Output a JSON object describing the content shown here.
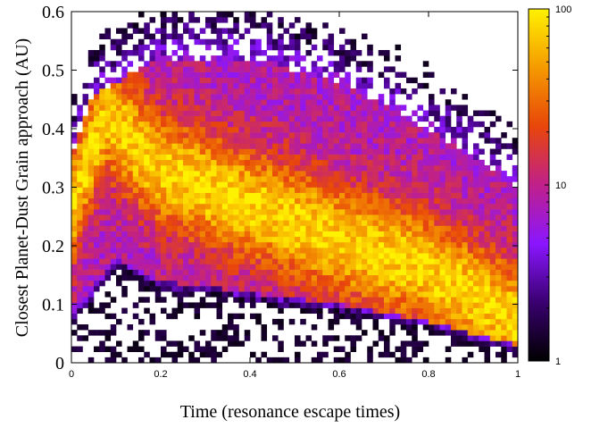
{
  "chart_data": {
    "type": "heatmap",
    "title": "",
    "xlabel": "Time (resonance escape times)",
    "ylabel": "Closest Planet-Dust Grain approach (AU)",
    "xlim": [
      0,
      1
    ],
    "ylim": [
      0,
      0.6
    ],
    "x_ticks": [
      "0",
      "0.2",
      "0.4",
      "0.6",
      "0.8",
      "1"
    ],
    "x_tick_values": [
      0,
      0.2,
      0.4,
      0.6,
      0.8,
      1
    ],
    "y_ticks": [
      "0",
      "0.1",
      "0.2",
      "0.3",
      "0.4",
      "0.5",
      "0.6"
    ],
    "y_tick_values": [
      0,
      0.1,
      0.2,
      0.3,
      0.4,
      0.5,
      0.6
    ],
    "colorbar": {
      "scale": "log",
      "range": [
        1,
        100
      ],
      "ticks": [
        "1",
        "10",
        "100"
      ],
      "tick_values": [
        1,
        10,
        100
      ],
      "colormap": [
        "#000000",
        "#3a0070",
        "#8a16ff",
        "#c0208a",
        "#e8460a",
        "#f59a00",
        "#fff200"
      ]
    },
    "structure": {
      "peak_ridge": [
        [
          0.0,
          0.26
        ],
        [
          0.05,
          0.38
        ],
        [
          0.08,
          0.42
        ],
        [
          0.2,
          0.33
        ],
        [
          0.4,
          0.27
        ],
        [
          0.6,
          0.21
        ],
        [
          0.8,
          0.16
        ],
        [
          1.0,
          0.07
        ]
      ],
      "lower_edge": [
        [
          0.0,
          0.08
        ],
        [
          0.1,
          0.18
        ],
        [
          0.2,
          0.14
        ],
        [
          0.4,
          0.12
        ],
        [
          0.6,
          0.1
        ],
        [
          0.8,
          0.07
        ],
        [
          1.0,
          0.03
        ]
      ],
      "upper_edge": [
        [
          0.0,
          0.35
        ],
        [
          0.05,
          0.46
        ],
        [
          0.2,
          0.52
        ],
        [
          0.4,
          0.52
        ],
        [
          0.6,
          0.48
        ],
        [
          0.8,
          0.4
        ],
        [
          1.0,
          0.3
        ]
      ]
    }
  }
}
